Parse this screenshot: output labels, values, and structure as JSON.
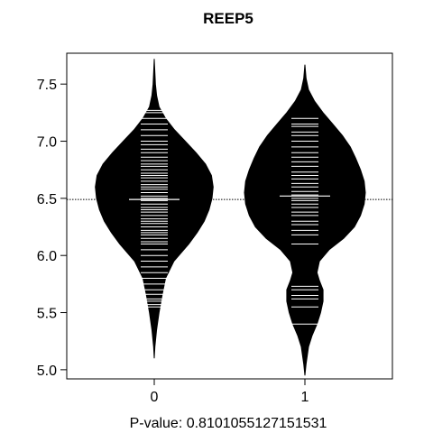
{
  "chart_data": {
    "type": "beanplot",
    "title": "REEP5",
    "xlabel": "P-value: 0.8101055127151531",
    "ylabel": "",
    "ylim": [
      4.92,
      7.77
    ],
    "yticks": [
      "5.0",
      "5.5",
      "6.0",
      "6.5",
      "7.0",
      "7.5"
    ],
    "categories": [
      "0",
      "1"
    ],
    "overall_line": 6.49,
    "groups": [
      {
        "label": "0",
        "mean": 6.49,
        "density": [
          [
            5.1,
            0.0
          ],
          [
            5.2,
            0.01
          ],
          [
            5.35,
            0.04
          ],
          [
            5.5,
            0.08
          ],
          [
            5.65,
            0.13
          ],
          [
            5.8,
            0.19
          ],
          [
            5.95,
            0.33
          ],
          [
            6.1,
            0.58
          ],
          [
            6.2,
            0.72
          ],
          [
            6.3,
            0.84
          ],
          [
            6.4,
            0.92
          ],
          [
            6.5,
            0.97
          ],
          [
            6.6,
            0.99
          ],
          [
            6.7,
            0.96
          ],
          [
            6.8,
            0.86
          ],
          [
            6.9,
            0.7
          ],
          [
            7.0,
            0.52
          ],
          [
            7.1,
            0.34
          ],
          [
            7.2,
            0.19
          ],
          [
            7.3,
            0.08
          ],
          [
            7.4,
            0.04
          ],
          [
            7.5,
            0.02
          ],
          [
            7.6,
            0.01
          ],
          [
            7.72,
            0.0
          ]
        ],
        "observations": [
          5.55,
          5.57,
          5.6,
          5.62,
          5.66,
          5.7,
          5.75,
          5.8,
          5.85,
          5.9,
          5.95,
          6.0,
          6.05,
          6.1,
          6.12,
          6.15,
          6.18,
          6.2,
          6.22,
          6.25,
          6.28,
          6.3,
          6.32,
          6.35,
          6.38,
          6.4,
          6.42,
          6.45,
          6.48,
          6.5,
          6.52,
          6.55,
          6.58,
          6.6,
          6.62,
          6.65,
          6.68,
          6.7,
          6.72,
          6.75,
          6.78,
          6.8,
          6.83,
          6.86,
          6.9,
          6.93,
          6.97,
          7.0,
          7.05,
          7.1,
          7.15,
          7.2,
          7.25,
          7.27
        ]
      },
      {
        "label": "1",
        "mean": 6.52,
        "density": [
          [
            4.95,
            0.0
          ],
          [
            5.05,
            0.02
          ],
          [
            5.2,
            0.06
          ],
          [
            5.3,
            0.12
          ],
          [
            5.4,
            0.2
          ],
          [
            5.5,
            0.26
          ],
          [
            5.6,
            0.3
          ],
          [
            5.7,
            0.3
          ],
          [
            5.78,
            0.24
          ],
          [
            5.85,
            0.2
          ],
          [
            5.95,
            0.24
          ],
          [
            6.05,
            0.4
          ],
          [
            6.15,
            0.64
          ],
          [
            6.25,
            0.82
          ],
          [
            6.35,
            0.92
          ],
          [
            6.45,
            0.98
          ],
          [
            6.55,
            1.0
          ],
          [
            6.65,
            0.98
          ],
          [
            6.75,
            0.92
          ],
          [
            6.85,
            0.84
          ],
          [
            6.95,
            0.75
          ],
          [
            7.05,
            0.62
          ],
          [
            7.15,
            0.46
          ],
          [
            7.25,
            0.3
          ],
          [
            7.35,
            0.16
          ],
          [
            7.45,
            0.06
          ],
          [
            7.55,
            0.02
          ],
          [
            7.67,
            0.0
          ]
        ],
        "observations": [
          5.4,
          5.55,
          5.62,
          5.65,
          5.7,
          5.73,
          6.1,
          6.18,
          6.22,
          6.27,
          6.3,
          6.35,
          6.38,
          6.42,
          6.45,
          6.48,
          6.5,
          6.53,
          6.56,
          6.6,
          6.63,
          6.67,
          6.7,
          6.73,
          6.78,
          6.82,
          6.86,
          6.9,
          6.95,
          7.0,
          7.05,
          7.08,
          7.13,
          7.15,
          7.2
        ]
      }
    ]
  }
}
